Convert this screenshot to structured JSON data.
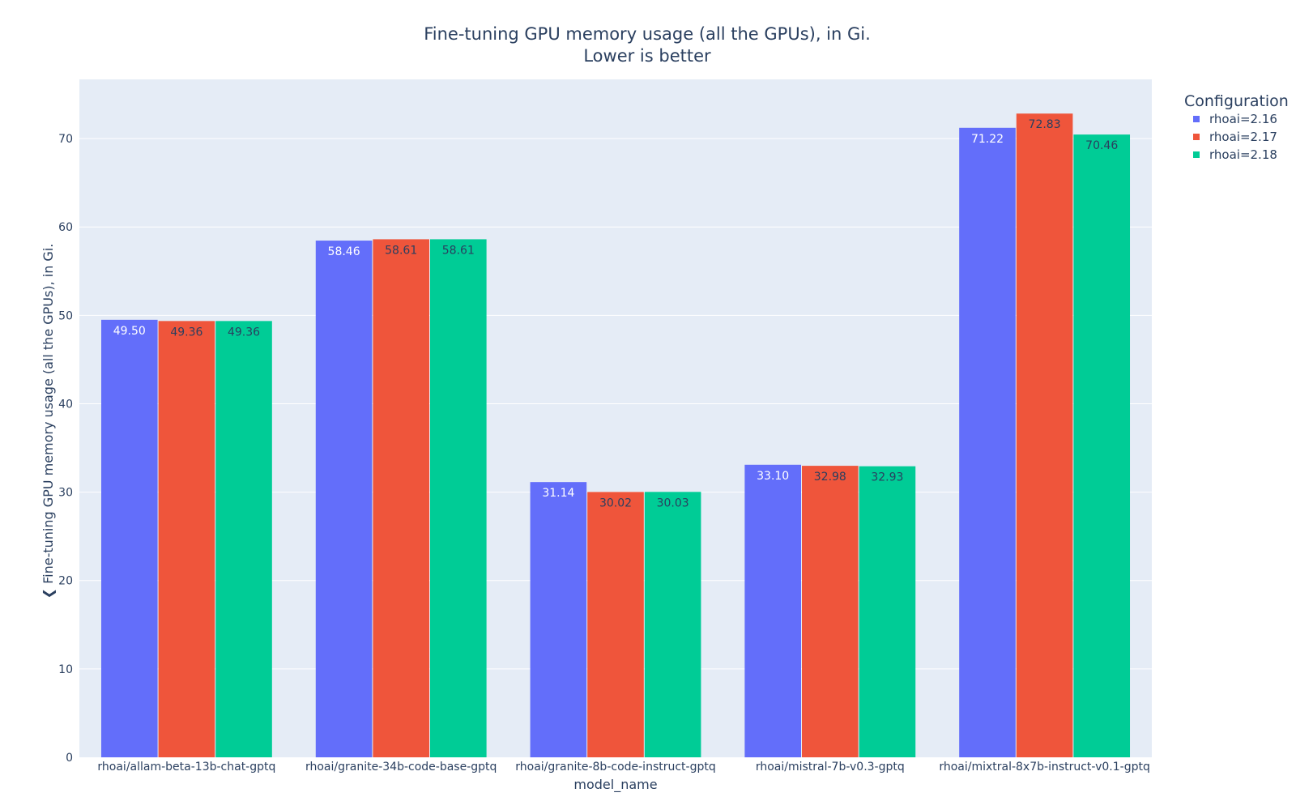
{
  "chart_data": {
    "type": "bar",
    "title": "Fine-tuning GPU memory usage (all the GPUs), in Gi.",
    "subtitle": "Lower is better",
    "xlabel": "model_name",
    "ylabel": "❮ Fine-tuning GPU memory usage (all the GPUs), in Gi.",
    "ylim": [
      0,
      76.7
    ],
    "yticks": [
      0,
      10,
      20,
      30,
      40,
      50,
      60,
      70
    ],
    "grid": true,
    "categories": [
      "rhoai/allam-beta-13b-chat-gptq",
      "rhoai/granite-34b-code-base-gptq",
      "rhoai/granite-8b-code-instruct-gptq",
      "rhoai/mistral-7b-v0.3-gptq",
      "rhoai/mixtral-8x7b-instruct-v0.1-gptq"
    ],
    "legend_title": "Configuration",
    "legend_position": "top-right",
    "series": [
      {
        "name": "rhoai=2.16",
        "color": "#636efa",
        "label_color": "#ffffff",
        "values": [
          49.5,
          58.46,
          31.14,
          33.1,
          71.22
        ],
        "labels": [
          "49.50",
          "58.46",
          "31.14",
          "33.10",
          "71.22"
        ]
      },
      {
        "name": "rhoai=2.17",
        "color": "#ef553b",
        "label_color": "#2a3f5f",
        "values": [
          49.36,
          58.61,
          30.02,
          32.98,
          72.83
        ],
        "labels": [
          "49.36",
          "58.61",
          "30.02",
          "32.98",
          "72.83"
        ]
      },
      {
        "name": "rhoai=2.18",
        "color": "#00cc96",
        "label_color": "#2a3f5f",
        "values": [
          49.36,
          58.61,
          30.03,
          32.93,
          70.46
        ],
        "labels": [
          "49.36",
          "58.61",
          "30.03",
          "32.93",
          "70.46"
        ]
      }
    ]
  },
  "colors": {
    "plot_background": "#e5ecf6",
    "grid": "#ffffff",
    "text": "#2a3f5f"
  }
}
